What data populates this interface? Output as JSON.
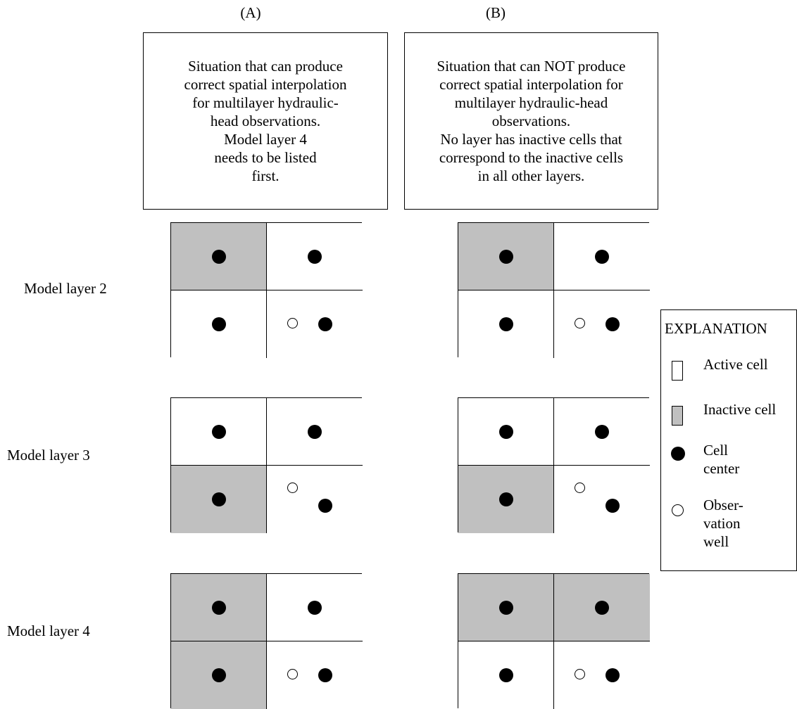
{
  "columns": {
    "a": {
      "label": "(A)",
      "box_text": "Situation that can produce\ncorrect spatial interpolation\nfor multilayer hydraulic-\nhead observations.\nModel layer 4\nneeds to be listed\nfirst."
    },
    "b": {
      "label": "(B)",
      "box_text": "Situation that can NOT produce\ncorrect spatial interpolation for\nmultilayer hydraulic-head\nobservations.\nNo layer has inactive cells that\ncorrespond to the inactive cells\nin all other layers."
    }
  },
  "rows": [
    {
      "label": "Model layer 2"
    },
    {
      "label": "Model layer 3"
    },
    {
      "label": "Model layer 4"
    }
  ],
  "grids": {
    "a": [
      {
        "layer": "Model layer 2",
        "inactive_cells": [
          "top-left"
        ]
      },
      {
        "layer": "Model layer 3",
        "inactive_cells": [
          "bottom-left"
        ]
      },
      {
        "layer": "Model layer 4",
        "inactive_cells": [
          "top-left",
          "bottom-left"
        ]
      }
    ],
    "b": [
      {
        "layer": "Model layer 2",
        "inactive_cells": [
          "top-left"
        ]
      },
      {
        "layer": "Model layer 3",
        "inactive_cells": [
          "bottom-left"
        ]
      },
      {
        "layer": "Model layer 4",
        "inactive_cells": [
          "top-left",
          "top-right"
        ]
      }
    ]
  },
  "legend": {
    "title": "EXPLANATION",
    "active": "Active cell",
    "inactive": "Inactive cell",
    "center": "Cell\ncenter",
    "well": "Obser-\nvation\nwell"
  },
  "colors": {
    "inactive": "#c0c0c0",
    "active": "#ffffff",
    "line": "#000000"
  }
}
